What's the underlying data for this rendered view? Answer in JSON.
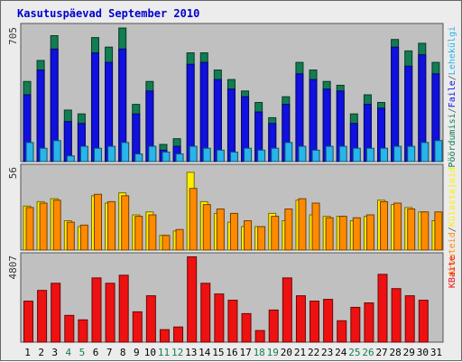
{
  "title": "Kasutuspäevad September 2010",
  "colors": {
    "visits": "#127d52",
    "pages": "#1010e0",
    "files": "#28b4ec",
    "hits": "#ff8a00",
    "hosts": "#ffee00",
    "kbytes": "#ee1111",
    "plot_bg": "#c0c0c0",
    "weekday_label": "#000000",
    "weekend_label": "#127d52"
  },
  "chart_data": [
    {
      "type": "bar",
      "title": "",
      "ymax_label": "705",
      "ylim": [
        0,
        705
      ],
      "x": [
        1,
        2,
        3,
        4,
        5,
        6,
        7,
        8,
        9,
        10,
        11,
        12,
        13,
        14,
        15,
        16,
        17,
        18,
        19,
        20,
        21,
        22,
        23,
        24,
        25,
        26,
        27,
        28,
        29,
        30,
        31
      ],
      "weekend_days": [
        4,
        5,
        11,
        12,
        18,
        19,
        25,
        26
      ],
      "series": [
        {
          "name": "Pöördumisi",
          "key": "visits",
          "values": [
            420,
            530,
            660,
            270,
            250,
            650,
            600,
            700,
            300,
            420,
            90,
            120,
            570,
            570,
            480,
            430,
            370,
            310,
            230,
            340,
            520,
            480,
            420,
            400,
            250,
            350,
            310,
            640,
            580,
            620,
            520
          ]
        },
        {
          "name": "Faile",
          "key": "pages",
          "values": [
            350,
            480,
            590,
            210,
            200,
            570,
            520,
            590,
            250,
            370,
            60,
            80,
            510,
            520,
            430,
            380,
            340,
            260,
            200,
            300,
            460,
            430,
            380,
            370,
            200,
            300,
            280,
            600,
            500,
            560,
            460
          ]
        },
        {
          "name": "Lehekülgi",
          "key": "files",
          "values": [
            100,
            70,
            110,
            30,
            80,
            70,
            80,
            100,
            40,
            80,
            50,
            40,
            80,
            70,
            60,
            50,
            70,
            60,
            70,
            100,
            80,
            60,
            80,
            80,
            70,
            70,
            70,
            80,
            80,
            100,
            110
          ]
        }
      ]
    },
    {
      "type": "bar",
      "title": "",
      "ymax_label": "56",
      "ylim": [
        0,
        56
      ],
      "x": [
        1,
        2,
        3,
        4,
        5,
        6,
        7,
        8,
        9,
        10,
        11,
        12,
        13,
        14,
        15,
        16,
        17,
        18,
        19,
        20,
        21,
        22,
        23,
        24,
        25,
        26,
        27,
        28,
        29,
        30,
        31
      ],
      "series": [
        {
          "name": "Külastajaid",
          "key": "hosts",
          "values": [
            30,
            33,
            35,
            20,
            16,
            37,
            32,
            39,
            24,
            26,
            10,
            13,
            53,
            33,
            25,
            19,
            16,
            16,
            25,
            20,
            34,
            24,
            23,
            23,
            20,
            23,
            34,
            31,
            29,
            26,
            20
          ]
        },
        {
          "name": "Arvuteid",
          "key": "hits",
          "values": [
            29,
            32,
            34,
            19,
            17,
            38,
            33,
            37,
            23,
            24,
            10,
            14,
            42,
            31,
            28,
            25,
            20,
            16,
            23,
            28,
            35,
            32,
            22,
            23,
            22,
            24,
            33,
            32,
            28,
            26,
            26
          ]
        }
      ]
    },
    {
      "type": "bar",
      "title": "",
      "ymax_label": "4807",
      "ylim": [
        0,
        4807
      ],
      "x": [
        1,
        2,
        3,
        4,
        5,
        6,
        7,
        8,
        9,
        10,
        11,
        12,
        13,
        14,
        15,
        16,
        17,
        18,
        19,
        20,
        21,
        22,
        23,
        24,
        25,
        26,
        27,
        28,
        29,
        30,
        31
      ],
      "series": [
        {
          "name": "KBaite",
          "key": "kbytes",
          "values": [
            2300,
            2900,
            3300,
            1500,
            1250,
            3600,
            3300,
            3750,
            1700,
            2600,
            700,
            850,
            4780,
            3300,
            2700,
            2350,
            1600,
            650,
            1800,
            3600,
            2600,
            2300,
            2400,
            1200,
            1950,
            2200,
            3800,
            3000,
            2600,
            2350,
            0
          ]
        }
      ]
    }
  ],
  "right_labels": {
    "top": [
      "Pöördumisi",
      "/",
      "Faile",
      "/",
      "Lehekülgi"
    ],
    "mid": [
      "Arvuteid",
      "/",
      "Külastajaid"
    ],
    "bot": [
      "KBaite"
    ]
  }
}
